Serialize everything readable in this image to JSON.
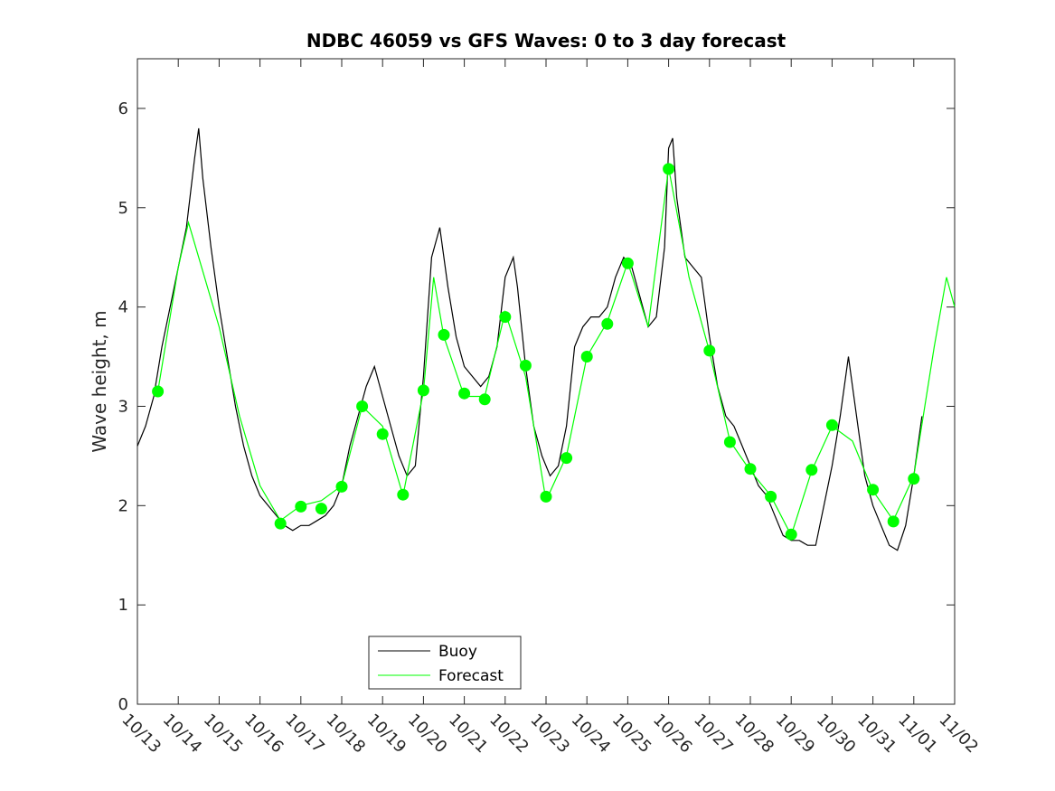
{
  "chart_data": {
    "type": "line",
    "title": "NDBC 46059 vs GFS Waves: 0 to 3 day forecast",
    "xlabel": "",
    "ylabel": "Wave height, m",
    "xlim": [
      0,
      20
    ],
    "ylim": [
      0,
      6.5
    ],
    "grid": false,
    "legend_position": "bottom-center",
    "x_tick_labels": [
      "10/13",
      "10/14",
      "10/15",
      "10/16",
      "10/17",
      "10/18",
      "10/19",
      "10/20",
      "10/21",
      "10/22",
      "10/23",
      "10/24",
      "10/25",
      "10/26",
      "10/27",
      "10/28",
      "10/29",
      "10/30",
      "10/31",
      "11/01",
      "11/02"
    ],
    "y_ticks": [
      0,
      1,
      2,
      3,
      4,
      5,
      6
    ],
    "colors": {
      "buoy": "#000000",
      "forecast": "#00ff00"
    },
    "series": [
      {
        "name": "Buoy",
        "color": "#000000",
        "points": [
          [
            0,
            2.6
          ],
          [
            0.2,
            2.8
          ],
          [
            0.4,
            3.1
          ],
          [
            0.6,
            3.6
          ],
          [
            0.8,
            4.0
          ],
          [
            1.0,
            4.4
          ],
          [
            1.2,
            4.8
          ],
          [
            1.4,
            5.5
          ],
          [
            1.5,
            5.8
          ],
          [
            1.6,
            5.3
          ],
          [
            1.8,
            4.6
          ],
          [
            2.0,
            4.0
          ],
          [
            2.2,
            3.5
          ],
          [
            2.4,
            3.0
          ],
          [
            2.6,
            2.6
          ],
          [
            2.8,
            2.3
          ],
          [
            3.0,
            2.1
          ],
          [
            3.2,
            2.0
          ],
          [
            3.4,
            1.9
          ],
          [
            3.6,
            1.8
          ],
          [
            3.8,
            1.75
          ],
          [
            4.0,
            1.8
          ],
          [
            4.2,
            1.8
          ],
          [
            4.4,
            1.85
          ],
          [
            4.6,
            1.9
          ],
          [
            4.8,
            2.0
          ],
          [
            5.0,
            2.2
          ],
          [
            5.2,
            2.6
          ],
          [
            5.4,
            2.9
          ],
          [
            5.6,
            3.2
          ],
          [
            5.8,
            3.4
          ],
          [
            6.0,
            3.1
          ],
          [
            6.2,
            2.8
          ],
          [
            6.4,
            2.5
          ],
          [
            6.6,
            2.3
          ],
          [
            6.8,
            2.4
          ],
          [
            7.0,
            3.3
          ],
          [
            7.2,
            4.5
          ],
          [
            7.4,
            4.8
          ],
          [
            7.6,
            4.2
          ],
          [
            7.8,
            3.7
          ],
          [
            8.0,
            3.4
          ],
          [
            8.2,
            3.3
          ],
          [
            8.4,
            3.2
          ],
          [
            8.6,
            3.3
          ],
          [
            8.8,
            3.6
          ],
          [
            9.0,
            4.3
          ],
          [
            9.2,
            4.5
          ],
          [
            9.3,
            4.2
          ],
          [
            9.5,
            3.4
          ],
          [
            9.7,
            2.8
          ],
          [
            9.9,
            2.5
          ],
          [
            10.1,
            2.3
          ],
          [
            10.3,
            2.4
          ],
          [
            10.5,
            2.8
          ],
          [
            10.7,
            3.6
          ],
          [
            10.9,
            3.8
          ],
          [
            11.1,
            3.9
          ],
          [
            11.3,
            3.9
          ],
          [
            11.5,
            4.0
          ],
          [
            11.7,
            4.3
          ],
          [
            11.9,
            4.5
          ],
          [
            12.1,
            4.4
          ],
          [
            12.3,
            4.1
          ],
          [
            12.5,
            3.8
          ],
          [
            12.7,
            3.9
          ],
          [
            12.9,
            4.6
          ],
          [
            13.0,
            5.6
          ],
          [
            13.1,
            5.7
          ],
          [
            13.2,
            5.1
          ],
          [
            13.4,
            4.5
          ],
          [
            13.6,
            4.4
          ],
          [
            13.8,
            4.3
          ],
          [
            14.0,
            3.7
          ],
          [
            14.2,
            3.2
          ],
          [
            14.4,
            2.9
          ],
          [
            14.6,
            2.8
          ],
          [
            14.8,
            2.6
          ],
          [
            15.0,
            2.4
          ],
          [
            15.2,
            2.2
          ],
          [
            15.4,
            2.1
          ],
          [
            15.6,
            1.9
          ],
          [
            15.8,
            1.7
          ],
          [
            16.0,
            1.65
          ],
          [
            16.2,
            1.65
          ],
          [
            16.4,
            1.6
          ],
          [
            16.6,
            1.6
          ],
          [
            16.8,
            2.0
          ],
          [
            17.0,
            2.4
          ],
          [
            17.2,
            2.9
          ],
          [
            17.4,
            3.5
          ],
          [
            17.6,
            2.9
          ],
          [
            17.8,
            2.3
          ],
          [
            18.0,
            2.0
          ],
          [
            18.2,
            1.8
          ],
          [
            18.4,
            1.6
          ],
          [
            18.6,
            1.55
          ],
          [
            18.8,
            1.8
          ],
          [
            19.0,
            2.3
          ],
          [
            19.2,
            2.9
          ]
        ]
      },
      {
        "name": "Forecast",
        "color": "#00ff00",
        "points": [
          [
            0.5,
            3.15
          ],
          [
            1.0,
            4.4
          ],
          [
            1.25,
            4.85
          ],
          [
            1.5,
            4.5
          ],
          [
            2.0,
            3.8
          ],
          [
            2.5,
            2.9
          ],
          [
            3.0,
            2.2
          ],
          [
            3.5,
            1.85
          ],
          [
            4.0,
            2.0
          ],
          [
            4.5,
            2.05
          ],
          [
            5.0,
            2.2
          ],
          [
            5.5,
            3.0
          ],
          [
            6.0,
            2.8
          ],
          [
            6.5,
            2.1
          ],
          [
            7.0,
            3.15
          ],
          [
            7.25,
            4.3
          ],
          [
            7.5,
            3.7
          ],
          [
            8.0,
            3.1
          ],
          [
            8.5,
            3.1
          ],
          [
            9.0,
            3.95
          ],
          [
            9.5,
            3.3
          ],
          [
            10.0,
            2.05
          ],
          [
            10.5,
            2.5
          ],
          [
            11.0,
            3.5
          ],
          [
            11.5,
            3.85
          ],
          [
            12.0,
            4.45
          ],
          [
            12.5,
            3.8
          ],
          [
            13.0,
            5.4
          ],
          [
            13.5,
            4.3
          ],
          [
            14.0,
            3.55
          ],
          [
            14.5,
            2.65
          ],
          [
            15.0,
            2.35
          ],
          [
            15.5,
            2.1
          ],
          [
            16.0,
            1.7
          ],
          [
            16.5,
            2.35
          ],
          [
            17.0,
            2.8
          ],
          [
            17.5,
            2.65
          ],
          [
            18.0,
            2.15
          ],
          [
            18.5,
            1.85
          ],
          [
            19.0,
            2.3
          ],
          [
            19.5,
            3.6
          ],
          [
            19.8,
            4.3
          ],
          [
            20.0,
            4.0
          ]
        ]
      }
    ],
    "forecast_markers": [
      [
        0.5,
        3.15
      ],
      [
        3.5,
        1.82
      ],
      [
        4.0,
        1.99
      ],
      [
        4.5,
        1.97
      ],
      [
        5.0,
        2.19
      ],
      [
        5.5,
        3.0
      ],
      [
        6.0,
        2.72
      ],
      [
        6.5,
        2.11
      ],
      [
        7.0,
        3.16
      ],
      [
        7.5,
        3.72
      ],
      [
        8.0,
        3.13
      ],
      [
        8.5,
        3.07
      ],
      [
        9.0,
        3.9
      ],
      [
        9.5,
        3.41
      ],
      [
        10.0,
        2.09
      ],
      [
        10.5,
        2.48
      ],
      [
        11.0,
        3.5
      ],
      [
        11.5,
        3.83
      ],
      [
        12.0,
        4.44
      ],
      [
        13.0,
        5.39
      ],
      [
        14.0,
        3.56
      ],
      [
        14.5,
        2.64
      ],
      [
        15.0,
        2.37
      ],
      [
        15.5,
        2.09
      ],
      [
        16.0,
        1.71
      ],
      [
        16.5,
        2.36
      ],
      [
        17.0,
        2.81
      ],
      [
        18.0,
        2.16
      ],
      [
        18.5,
        1.84
      ],
      [
        19.0,
        2.27
      ]
    ]
  }
}
